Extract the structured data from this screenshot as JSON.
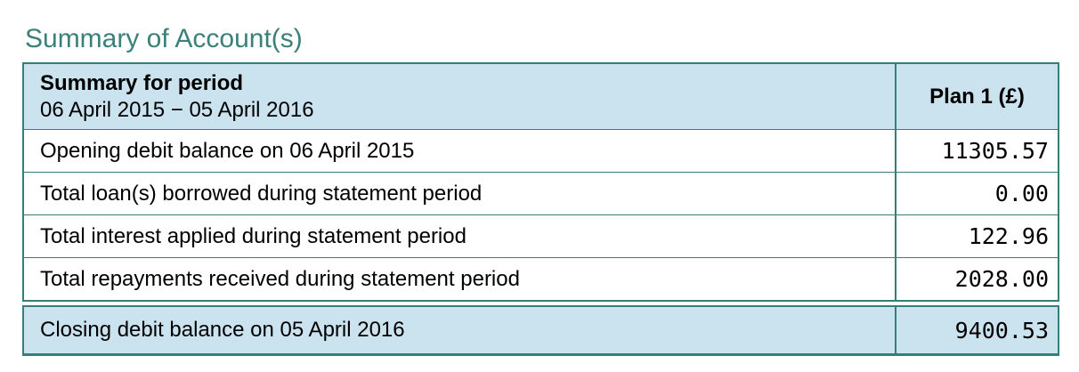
{
  "page_title": "Summary of Account(s)",
  "colors": {
    "title_teal": "#398179",
    "table_border_teal": "#367E78",
    "header_light_blue": "#CBE2EF",
    "body_text": "#000000"
  },
  "summary_table": {
    "header": {
      "title": "Summary for period",
      "period": "06 April 2015 − 05 April 2016",
      "value_column_label": "Plan 1 (£)"
    },
    "rows": [
      {
        "label": "Opening debit balance on 06 April 2015",
        "value": "11305.57"
      },
      {
        "label": "Total loan(s) borrowed during statement period",
        "value": "0.00"
      },
      {
        "label": "Total interest applied during statement period",
        "value": "122.96"
      },
      {
        "label": "Total repayments received during statement period",
        "value": "2028.00"
      }
    ],
    "closing_row": {
      "label": "Closing debit balance on 05 April 2016",
      "value": "9400.53"
    }
  }
}
